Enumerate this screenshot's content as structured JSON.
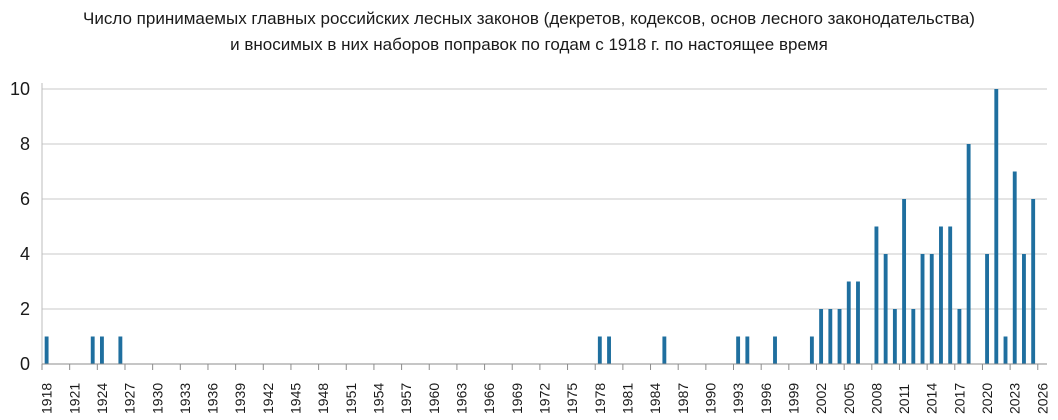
{
  "chart_data": {
    "type": "bar",
    "title": "Число принимаемых главных российских лесных законов (декретов, кодексов, основ лесного законодательства)",
    "subtitle": "и вносимых в них наборов поправок по годам с 1918 г. по настоящее время",
    "xlabel": "",
    "ylabel": "",
    "x_start": 1918,
    "x_end": 2026,
    "x_tick_step": 3,
    "ylim": [
      0,
      10
    ],
    "yticks": [
      0,
      2,
      4,
      6,
      8,
      10
    ],
    "grid": true,
    "bar_color": "#1f6f9f",
    "data": [
      {
        "year": 1918,
        "value": 1
      },
      {
        "year": 1923,
        "value": 1
      },
      {
        "year": 1924,
        "value": 1
      },
      {
        "year": 1926,
        "value": 1
      },
      {
        "year": 1978,
        "value": 1
      },
      {
        "year": 1979,
        "value": 1
      },
      {
        "year": 1985,
        "value": 1
      },
      {
        "year": 1993,
        "value": 1
      },
      {
        "year": 1994,
        "value": 1
      },
      {
        "year": 1997,
        "value": 1
      },
      {
        "year": 2001,
        "value": 1
      },
      {
        "year": 2002,
        "value": 2
      },
      {
        "year": 2003,
        "value": 2
      },
      {
        "year": 2004,
        "value": 2
      },
      {
        "year": 2005,
        "value": 3
      },
      {
        "year": 2006,
        "value": 3
      },
      {
        "year": 2008,
        "value": 5
      },
      {
        "year": 2009,
        "value": 4
      },
      {
        "year": 2010,
        "value": 2
      },
      {
        "year": 2011,
        "value": 6
      },
      {
        "year": 2012,
        "value": 2
      },
      {
        "year": 2013,
        "value": 4
      },
      {
        "year": 2014,
        "value": 4
      },
      {
        "year": 2015,
        "value": 5
      },
      {
        "year": 2016,
        "value": 5
      },
      {
        "year": 2017,
        "value": 2
      },
      {
        "year": 2018,
        "value": 8
      },
      {
        "year": 2020,
        "value": 4
      },
      {
        "year": 2021,
        "value": 10
      },
      {
        "year": 2022,
        "value": 1
      },
      {
        "year": 2023,
        "value": 7
      },
      {
        "year": 2024,
        "value": 4
      },
      {
        "year": 2025,
        "value": 6
      }
    ]
  }
}
